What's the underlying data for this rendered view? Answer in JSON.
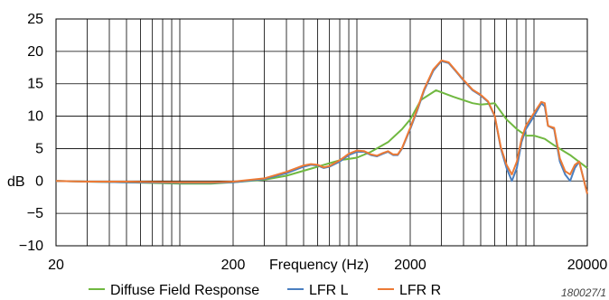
{
  "chart_data": {
    "type": "line",
    "xscale": "log",
    "xlim": [
      20,
      20000
    ],
    "ylim": [
      -10,
      25
    ],
    "grid": true,
    "xlabel": "Frequency (Hz)",
    "ylabel": "dB",
    "x_ticks": [
      20,
      200,
      2000,
      20000
    ],
    "x_tick_labels": [
      "20",
      "200",
      "2000",
      "20000"
    ],
    "y_ticks": [
      25,
      20,
      15,
      10,
      5,
      0,
      -5,
      -10
    ],
    "y_tick_labels": [
      "25",
      "20",
      "15",
      "10",
      "5",
      "0",
      "−5",
      "−10"
    ],
    "legend_position": "bottom",
    "series": [
      {
        "name": "Diffuse Field Response",
        "color": "#70b840",
        "points": [
          [
            20,
            0
          ],
          [
            30,
            -0.1
          ],
          [
            50,
            -0.2
          ],
          [
            100,
            -0.4
          ],
          [
            150,
            -0.4
          ],
          [
            200,
            -0.2
          ],
          [
            300,
            0.2
          ],
          [
            400,
            0.8
          ],
          [
            600,
            2.2
          ],
          [
            800,
            3.2
          ],
          [
            1000,
            3.6
          ],
          [
            1200,
            4.5
          ],
          [
            1500,
            6
          ],
          [
            1800,
            8
          ],
          [
            2000,
            9.5
          ],
          [
            2300,
            12.5
          ],
          [
            2800,
            14
          ],
          [
            3500,
            13
          ],
          [
            4500,
            12
          ],
          [
            5000,
            11.8
          ],
          [
            6000,
            12
          ],
          [
            7000,
            9.5
          ],
          [
            8000,
            8
          ],
          [
            9000,
            7
          ],
          [
            10000,
            7
          ],
          [
            11500,
            6.5
          ],
          [
            13000,
            5.5
          ],
          [
            16000,
            4
          ],
          [
            20000,
            2
          ]
        ]
      },
      {
        "name": "LFR L",
        "color": "#4a7fc0",
        "points": [
          [
            20,
            0
          ],
          [
            30,
            -0.1
          ],
          [
            50,
            -0.2
          ],
          [
            100,
            -0.3
          ],
          [
            150,
            -0.3
          ],
          [
            200,
            -0.2
          ],
          [
            300,
            0.3
          ],
          [
            400,
            1.2
          ],
          [
            500,
            2.2
          ],
          [
            550,
            2.5
          ],
          [
            600,
            2.4
          ],
          [
            650,
            2
          ],
          [
            700,
            2.2
          ],
          [
            800,
            3
          ],
          [
            900,
            4
          ],
          [
            1000,
            4.5
          ],
          [
            1100,
            4.5
          ],
          [
            1200,
            4
          ],
          [
            1300,
            3.8
          ],
          [
            1400,
            4.2
          ],
          [
            1500,
            4.5
          ],
          [
            1600,
            4
          ],
          [
            1700,
            4
          ],
          [
            1800,
            5
          ],
          [
            2000,
            8
          ],
          [
            2200,
            11
          ],
          [
            2400,
            14
          ],
          [
            2700,
            17
          ],
          [
            3000,
            18.5
          ],
          [
            3300,
            18.2
          ],
          [
            3600,
            17
          ],
          [
            4000,
            15.5
          ],
          [
            4500,
            14
          ],
          [
            5000,
            13.2
          ],
          [
            5500,
            12.2
          ],
          [
            6000,
            10
          ],
          [
            6500,
            5
          ],
          [
            7000,
            2
          ],
          [
            7500,
            0
          ],
          [
            8000,
            2
          ],
          [
            8500,
            6
          ],
          [
            9000,
            8
          ],
          [
            10000,
            10
          ],
          [
            11000,
            12
          ],
          [
            11500,
            11.5
          ],
          [
            12000,
            8.5
          ],
          [
            13000,
            8
          ],
          [
            14000,
            3
          ],
          [
            15000,
            1
          ],
          [
            16000,
            0
          ],
          [
            17000,
            2
          ],
          [
            18000,
            3
          ],
          [
            20000,
            -2
          ]
        ]
      },
      {
        "name": "LFR R",
        "color": "#ec7a35",
        "points": [
          [
            20,
            0
          ],
          [
            30,
            -0.1
          ],
          [
            50,
            -0.1
          ],
          [
            100,
            -0.2
          ],
          [
            150,
            -0.2
          ],
          [
            200,
            -0.1
          ],
          [
            300,
            0.4
          ],
          [
            400,
            1.4
          ],
          [
            500,
            2.4
          ],
          [
            550,
            2.6
          ],
          [
            600,
            2.5
          ],
          [
            650,
            2.1
          ],
          [
            700,
            2.3
          ],
          [
            800,
            3.2
          ],
          [
            900,
            4.2
          ],
          [
            1000,
            4.7
          ],
          [
            1100,
            4.6
          ],
          [
            1200,
            4.1
          ],
          [
            1300,
            3.9
          ],
          [
            1400,
            4.3
          ],
          [
            1500,
            4.6
          ],
          [
            1600,
            4.1
          ],
          [
            1700,
            4.1
          ],
          [
            1800,
            5.1
          ],
          [
            2000,
            8.2
          ],
          [
            2200,
            11.2
          ],
          [
            2400,
            14.2
          ],
          [
            2700,
            17.2
          ],
          [
            3000,
            18.6
          ],
          [
            3300,
            18.3
          ],
          [
            3600,
            17.1
          ],
          [
            4000,
            15.6
          ],
          [
            4500,
            14.1
          ],
          [
            5000,
            13.3
          ],
          [
            5500,
            12.3
          ],
          [
            6000,
            10.1
          ],
          [
            6500,
            5.2
          ],
          [
            7000,
            2.5
          ],
          [
            7500,
            1
          ],
          [
            8000,
            3
          ],
          [
            8500,
            6.5
          ],
          [
            9000,
            8.5
          ],
          [
            10000,
            10.5
          ],
          [
            11000,
            12.2
          ],
          [
            11500,
            12
          ],
          [
            12000,
            8.5
          ],
          [
            13000,
            8.2
          ],
          [
            14000,
            3.5
          ],
          [
            15000,
            1.5
          ],
          [
            16000,
            1
          ],
          [
            17000,
            2.5
          ],
          [
            18000,
            3
          ],
          [
            20000,
            -2
          ]
        ]
      }
    ]
  },
  "figure_id": "180027/1"
}
